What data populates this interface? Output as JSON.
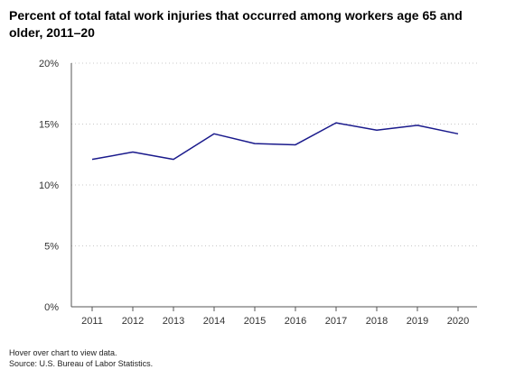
{
  "title": "Percent of total fatal work injuries that occurred among workers age 65 and older, 2011–20",
  "footer": {
    "hover_note": "Hover over chart to view data.",
    "source": "Source: U.S. Bureau of Labor Statistics."
  },
  "colors": {
    "line": "#1a1a8c",
    "grid": "#c8c8c8",
    "axis": "#555555"
  },
  "chart_data": {
    "type": "line",
    "title": "Percent of total fatal work injuries that occurred among workers age 65 and older, 2011–20",
    "xlabel": "",
    "ylabel": "",
    "categories": [
      "2011",
      "2012",
      "2013",
      "2014",
      "2015",
      "2016",
      "2017",
      "2018",
      "2019",
      "2020"
    ],
    "series": [
      {
        "values": [
          12.1,
          12.7,
          12.1,
          14.2,
          13.4,
          13.3,
          15.1,
          14.5,
          14.9,
          14.2
        ]
      }
    ],
    "ylim": [
      0,
      20
    ],
    "yticks": [
      0,
      5,
      10,
      15,
      20
    ],
    "ytick_labels": [
      "0%",
      "5%",
      "10%",
      "15%",
      "20%"
    ],
    "grid": "horizontal dotted",
    "legend": "none"
  }
}
